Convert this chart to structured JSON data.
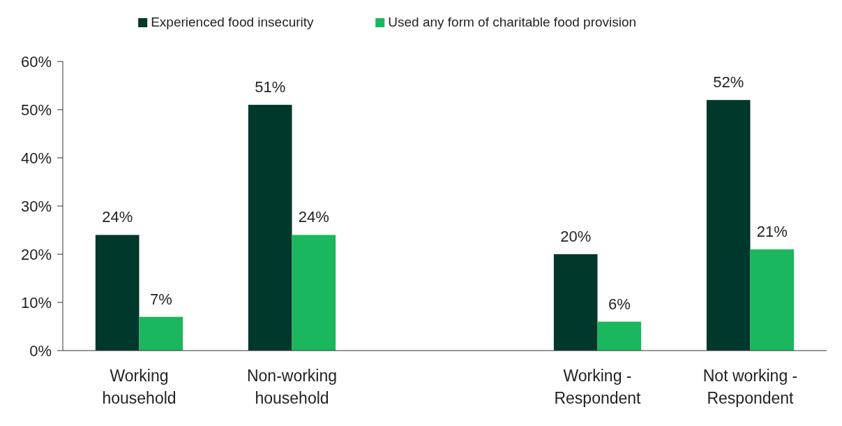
{
  "chart_data": {
    "type": "bar",
    "categories": [
      "Working household",
      "Non-working household",
      null,
      "Working - Respondent",
      "Not working - Respondent"
    ],
    "series": [
      {
        "name": "Experienced food insecurity",
        "color": "#00382b",
        "values": [
          24,
          51,
          null,
          20,
          52
        ],
        "value_labels": [
          "24%",
          "51%",
          null,
          "20%",
          "52%"
        ]
      },
      {
        "name": "Used any form of charitable food provision",
        "color": "#1ab75e",
        "values": [
          7,
          24,
          null,
          6,
          21
        ],
        "value_labels": [
          "7%",
          "24%",
          null,
          "6%",
          "21%"
        ]
      }
    ],
    "ylim": [
      0,
      60
    ],
    "yticks": [
      {
        "value": 0,
        "label": "0%"
      },
      {
        "value": 10,
        "label": "10%"
      },
      {
        "value": 20,
        "label": "20%"
      },
      {
        "value": 30,
        "label": "30%"
      },
      {
        "value": 40,
        "label": "40%"
      },
      {
        "value": 50,
        "label": "50%"
      },
      {
        "value": 60,
        "label": "60%"
      }
    ],
    "legend": "top",
    "grid": false
  }
}
